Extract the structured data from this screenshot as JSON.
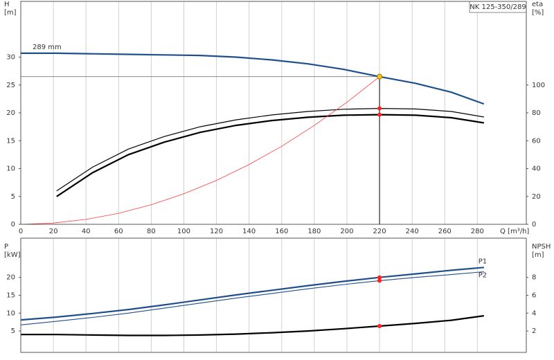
{
  "chart_data": [
    {
      "type": "line",
      "title": "NK 125-350/289",
      "ylabel": [
        "H",
        "[m]"
      ],
      "y2label": [
        "eta",
        "[%]"
      ],
      "xlabel": "Q [m³/h]",
      "xlim": [
        0,
        310
      ],
      "xticks": [
        0,
        20,
        40,
        60,
        80,
        100,
        120,
        140,
        160,
        180,
        200,
        220,
        240,
        260,
        280
      ],
      "ylim": [
        0,
        40
      ],
      "yticks": [
        0,
        5,
        10,
        15,
        20,
        25,
        30
      ],
      "y2lim": [
        0,
        160
      ],
      "y2ticks": [
        0,
        20,
        40,
        60,
        80,
        100
      ],
      "grid": true,
      "show_xtick_labels": true,
      "duty_point": {
        "x": 220,
        "y": 26.5,
        "color": "#f5c518"
      },
      "series": [
        {
          "name": "289 mm",
          "color": "#1f4e8c",
          "line_width": 2.2,
          "x": [
            0,
            22,
            44,
            66,
            88,
            110,
            132,
            154,
            176,
            198,
            220,
            242,
            264,
            284
          ],
          "values": [
            30.7,
            30.7,
            30.6,
            30.5,
            30.4,
            30.3,
            30.0,
            29.5,
            28.8,
            27.8,
            26.5,
            25.3,
            23.7,
            21.6
          ]
        },
        {
          "color": "#000000",
          "line_width": 1.2,
          "axis": "y2",
          "duty_markers": true,
          "x": [
            22,
            44,
            66,
            88,
            110,
            132,
            154,
            176,
            198,
            220,
            242,
            264,
            284
          ],
          "values": [
            24,
            41,
            54,
            63,
            70,
            75,
            78.5,
            81,
            82.6,
            83.2,
            82.8,
            81,
            77
          ]
        },
        {
          "color": "#000000",
          "line_width": 2.2,
          "axis": "y2",
          "duty_markers": true,
          "x": [
            22,
            44,
            66,
            88,
            110,
            132,
            154,
            176,
            198,
            220,
            242,
            264,
            284
          ],
          "values": [
            20,
            37,
            50,
            59,
            66,
            71,
            74.5,
            76.8,
            78.3,
            78.7,
            78.3,
            76.5,
            72.8
          ]
        },
        {
          "color": "#ff3b3b",
          "line_width": 0.8,
          "x": [
            0,
            20,
            40,
            60,
            80,
            100,
            120,
            140,
            160,
            180,
            200,
            220
          ],
          "values": [
            0,
            0.22,
            0.88,
            1.97,
            3.5,
            5.48,
            7.88,
            10.73,
            14.0,
            17.74,
            21.9,
            26.5
          ]
        }
      ]
    },
    {
      "type": "line",
      "ylabel": [
        "P",
        "[kW]"
      ],
      "y2label": [
        "NPSH",
        "[m]"
      ],
      "xlim": [
        0,
        310
      ],
      "xticks": [
        0,
        20,
        40,
        60,
        80,
        100,
        120,
        140,
        160,
        180,
        200,
        220,
        240,
        260,
        280
      ],
      "ylim": [
        -1,
        31
      ],
      "yticks": [
        5,
        10,
        15,
        20
      ],
      "y2lim": [
        -0.4,
        12.4
      ],
      "y2ticks": [
        2,
        4,
        6,
        8
      ],
      "grid": true,
      "show_xtick_labels": false,
      "duty_x": 220,
      "series": [
        {
          "name": "P1",
          "color": "#1f4e8c",
          "line_width": 2.2,
          "duty_markers": true,
          "x": [
            0,
            22,
            44,
            66,
            88,
            110,
            132,
            154,
            176,
            198,
            220,
            242,
            264,
            284
          ],
          "values": [
            8.1,
            8.9,
            9.9,
            11,
            12.3,
            13.7,
            15.1,
            16.4,
            17.7,
            18.9,
            20.0,
            21.0,
            22.0,
            22.8
          ]
        },
        {
          "name": "P2",
          "color": "#1f4e8c",
          "line_width": 1.1,
          "duty_markers": true,
          "x": [
            0,
            22,
            44,
            66,
            88,
            110,
            132,
            154,
            176,
            198,
            220,
            242,
            264,
            284
          ],
          "values": [
            6.7,
            7.7,
            8.8,
            10.0,
            11.4,
            12.8,
            14.2,
            15.5,
            16.8,
            18.0,
            19.1,
            20.0,
            20.8,
            21.6
          ]
        },
        {
          "color": "#000000",
          "line_width": 2.2,
          "axis": "y2",
          "duty_markers": true,
          "x": [
            0,
            22,
            44,
            66,
            88,
            110,
            132,
            154,
            176,
            198,
            220,
            242,
            264,
            284
          ],
          "values": [
            1.6,
            1.6,
            1.55,
            1.5,
            1.5,
            1.55,
            1.65,
            1.8,
            2.0,
            2.25,
            2.55,
            2.85,
            3.2,
            3.7
          ]
        }
      ]
    }
  ]
}
